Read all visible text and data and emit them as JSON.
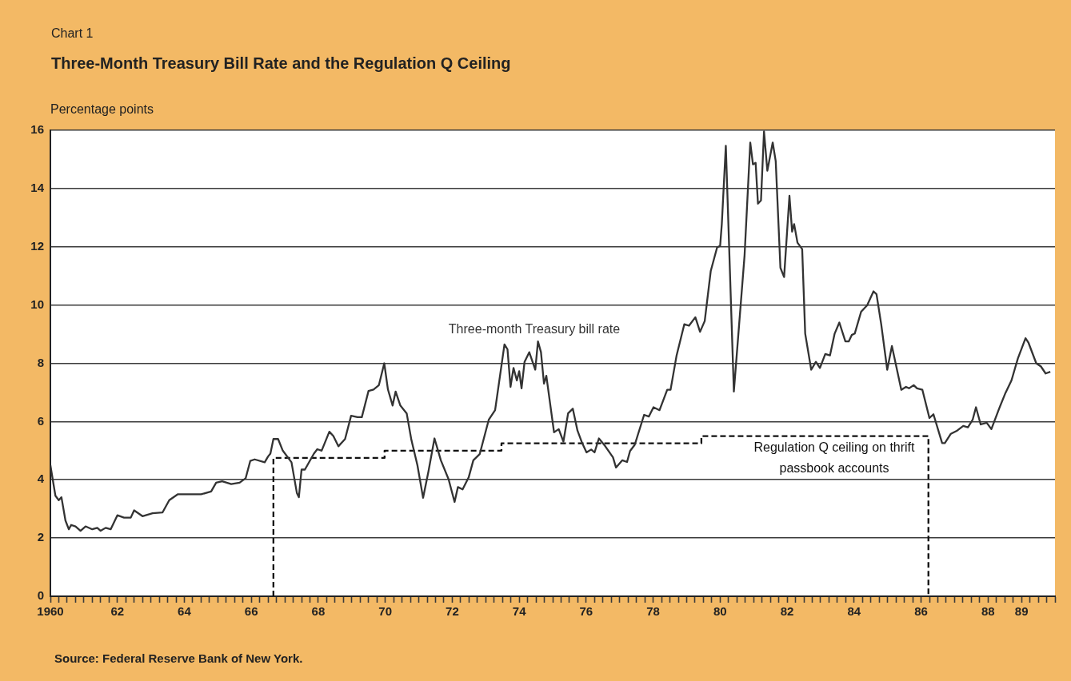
{
  "chart_data": {
    "type": "line",
    "title": "Three-Month Treasury Bill Rate and the Regulation Q Ceiling",
    "ylabel": "Percentage points",
    "annotations": [
      "Chart 1",
      "Source:  Federal Reserve Bank of New York."
    ],
    "xlim": [
      1960,
      1990
    ],
    "ylim": [
      0,
      16
    ],
    "yticks": [
      0,
      2,
      4,
      6,
      8,
      10,
      12,
      14,
      16
    ],
    "xticks": [
      {
        "value": 1960,
        "label": "1960"
      },
      {
        "value": 1960.25,
        "label": null
      },
      {
        "value": 1960.5,
        "label": null
      },
      {
        "value": 1960.75,
        "label": null
      },
      {
        "value": 1961,
        "label": null
      },
      {
        "value": 1961.25,
        "label": null
      },
      {
        "value": 1961.5,
        "label": null
      },
      {
        "value": 1961.75,
        "label": null
      },
      {
        "value": 1962,
        "label": "62"
      },
      {
        "value": 1962.25,
        "label": null
      },
      {
        "value": 1962.5,
        "label": null
      },
      {
        "value": 1962.75,
        "label": null
      },
      {
        "value": 1963,
        "label": null
      },
      {
        "value": 1963.25,
        "label": null
      },
      {
        "value": 1963.5,
        "label": null
      },
      {
        "value": 1963.75,
        "label": null
      },
      {
        "value": 1964,
        "label": "64"
      },
      {
        "value": 1964.25,
        "label": null
      },
      {
        "value": 1964.5,
        "label": null
      },
      {
        "value": 1964.75,
        "label": null
      },
      {
        "value": 1965,
        "label": null
      },
      {
        "value": 1965.25,
        "label": null
      },
      {
        "value": 1965.5,
        "label": null
      },
      {
        "value": 1965.75,
        "label": null
      },
      {
        "value": 1966,
        "label": "66"
      },
      {
        "value": 1966.25,
        "label": null
      },
      {
        "value": 1966.5,
        "label": null
      },
      {
        "value": 1966.75,
        "label": null
      },
      {
        "value": 1967,
        "label": null
      },
      {
        "value": 1967.25,
        "label": null
      },
      {
        "value": 1967.5,
        "label": null
      },
      {
        "value": 1967.75,
        "label": null
      },
      {
        "value": 1968,
        "label": "68"
      },
      {
        "value": 1968.25,
        "label": null
      },
      {
        "value": 1968.5,
        "label": null
      },
      {
        "value": 1968.75,
        "label": null
      },
      {
        "value": 1969,
        "label": null
      },
      {
        "value": 1969.25,
        "label": null
      },
      {
        "value": 1969.5,
        "label": null
      },
      {
        "value": 1969.75,
        "label": null
      },
      {
        "value": 1970,
        "label": "70"
      },
      {
        "value": 1970.25,
        "label": null
      },
      {
        "value": 1970.5,
        "label": null
      },
      {
        "value": 1970.75,
        "label": null
      },
      {
        "value": 1971,
        "label": null
      },
      {
        "value": 1971.25,
        "label": null
      },
      {
        "value": 1971.5,
        "label": null
      },
      {
        "value": 1971.75,
        "label": null
      },
      {
        "value": 1972,
        "label": "72"
      },
      {
        "value": 1972.25,
        "label": null
      },
      {
        "value": 1972.5,
        "label": null
      },
      {
        "value": 1972.75,
        "label": null
      },
      {
        "value": 1973,
        "label": null
      },
      {
        "value": 1973.25,
        "label": null
      },
      {
        "value": 1973.5,
        "label": null
      },
      {
        "value": 1973.75,
        "label": null
      },
      {
        "value": 1974,
        "label": "74"
      },
      {
        "value": 1974.25,
        "label": null
      },
      {
        "value": 1974.5,
        "label": null
      },
      {
        "value": 1974.75,
        "label": null
      },
      {
        "value": 1975,
        "label": null
      },
      {
        "value": 1975.25,
        "label": null
      },
      {
        "value": 1975.5,
        "label": null
      },
      {
        "value": 1975.75,
        "label": null
      },
      {
        "value": 1976,
        "label": "76"
      },
      {
        "value": 1976.25,
        "label": null
      },
      {
        "value": 1976.5,
        "label": null
      },
      {
        "value": 1976.75,
        "label": null
      },
      {
        "value": 1977,
        "label": null
      },
      {
        "value": 1977.25,
        "label": null
      },
      {
        "value": 1977.5,
        "label": null
      },
      {
        "value": 1977.75,
        "label": null
      },
      {
        "value": 1978,
        "label": "78"
      },
      {
        "value": 1978.25,
        "label": null
      },
      {
        "value": 1978.5,
        "label": null
      },
      {
        "value": 1978.75,
        "label": null
      },
      {
        "value": 1979,
        "label": null
      },
      {
        "value": 1979.25,
        "label": null
      },
      {
        "value": 1979.5,
        "label": null
      },
      {
        "value": 1979.75,
        "label": null
      },
      {
        "value": 1980,
        "label": "80"
      },
      {
        "value": 1980.25,
        "label": null
      },
      {
        "value": 1980.5,
        "label": null
      },
      {
        "value": 1980.75,
        "label": null
      },
      {
        "value": 1981,
        "label": null
      },
      {
        "value": 1981.25,
        "label": null
      },
      {
        "value": 1981.5,
        "label": null
      },
      {
        "value": 1981.75,
        "label": null
      },
      {
        "value": 1982,
        "label": "82"
      },
      {
        "value": 1982.25,
        "label": null
      },
      {
        "value": 1982.5,
        "label": null
      },
      {
        "value": 1982.75,
        "label": null
      },
      {
        "value": 1983,
        "label": null
      },
      {
        "value": 1983.25,
        "label": null
      },
      {
        "value": 1983.5,
        "label": null
      },
      {
        "value": 1983.75,
        "label": null
      },
      {
        "value": 1984,
        "label": "84"
      },
      {
        "value": 1984.25,
        "label": null
      },
      {
        "value": 1984.5,
        "label": null
      },
      {
        "value": 1984.75,
        "label": null
      },
      {
        "value": 1985,
        "label": null
      },
      {
        "value": 1985.25,
        "label": null
      },
      {
        "value": 1985.5,
        "label": null
      },
      {
        "value": 1985.75,
        "label": null
      },
      {
        "value": 1986,
        "label": "86"
      },
      {
        "value": 1986.25,
        "label": null
      },
      {
        "value": 1986.5,
        "label": null
      },
      {
        "value": 1986.75,
        "label": null
      },
      {
        "value": 1987,
        "label": null
      },
      {
        "value": 1987.25,
        "label": null
      },
      {
        "value": 1987.5,
        "label": null
      },
      {
        "value": 1987.75,
        "label": null
      },
      {
        "value": 1988,
        "label": "88"
      },
      {
        "value": 1988.25,
        "label": null
      },
      {
        "value": 1988.5,
        "label": null
      },
      {
        "value": 1988.75,
        "label": null
      },
      {
        "value": 1989,
        "label": "89"
      },
      {
        "value": 1989.25,
        "label": null
      },
      {
        "value": 1989.5,
        "label": null
      },
      {
        "value": 1989.75,
        "label": null
      },
      {
        "value": 1990,
        "label": null
      }
    ],
    "grid": "y",
    "marker": "none",
    "series": [
      {
        "name": "Three-month Treasury bill rate",
        "color": "#333333",
        "line_style": "solid",
        "x": [
          1960.0,
          1960.15,
          1960.25,
          1960.33,
          1960.45,
          1960.55,
          1960.62,
          1960.75,
          1960.9,
          1961.05,
          1961.25,
          1961.4,
          1961.5,
          1961.65,
          1961.8,
          1962.0,
          1962.2,
          1962.4,
          1962.5,
          1962.75,
          1963.05,
          1963.35,
          1963.55,
          1963.8,
          1964.15,
          1964.5,
          1964.8,
          1964.95,
          1965.13,
          1965.4,
          1965.65,
          1965.83,
          1965.97,
          1966.1,
          1966.4,
          1966.5,
          1966.57,
          1966.66,
          1966.8,
          1966.94,
          1967.2,
          1967.36,
          1967.42,
          1967.5,
          1967.6,
          1967.87,
          1967.97,
          1968.1,
          1968.33,
          1968.45,
          1968.6,
          1968.8,
          1968.98,
          1969.17,
          1969.3,
          1969.5,
          1969.65,
          1969.81,
          1969.97,
          1970.08,
          1970.22,
          1970.31,
          1970.45,
          1970.64,
          1970.78,
          1970.96,
          1971.13,
          1971.29,
          1971.47,
          1971.66,
          1971.89,
          1972.07,
          1972.17,
          1972.31,
          1972.49,
          1972.63,
          1972.82,
          1973.09,
          1973.28,
          1973.56,
          1973.65,
          1973.74,
          1973.83,
          1973.93,
          1974.0,
          1974.07,
          1974.16,
          1974.3,
          1974.48,
          1974.56,
          1974.65,
          1974.74,
          1974.81,
          1975.04,
          1975.18,
          1975.32,
          1975.46,
          1975.6,
          1975.74,
          1975.88,
          1976.01,
          1976.15,
          1976.25,
          1976.38,
          1976.57,
          1976.8,
          1976.89,
          1977.08,
          1977.22,
          1977.31,
          1977.45,
          1977.73,
          1977.87,
          1978.01,
          1978.19,
          1978.42,
          1978.52,
          1978.7,
          1978.93,
          1979.07,
          1979.26,
          1979.4,
          1979.54,
          1979.72,
          1979.91,
          1980.0,
          1980.05,
          1980.17,
          1980.41,
          1980.73,
          1980.9,
          1980.98,
          1981.06,
          1981.13,
          1981.22,
          1981.31,
          1981.41,
          1981.57,
          1981.66,
          1981.8,
          1981.91,
          1982.07,
          1982.15,
          1982.21,
          1982.31,
          1982.45,
          1982.54,
          1982.72,
          1982.86,
          1982.98,
          1983.14,
          1983.28,
          1983.42,
          1983.56,
          1983.74,
          1983.84,
          1983.93,
          1984.02,
          1984.21,
          1984.39,
          1984.58,
          1984.67,
          1984.81,
          1984.99,
          1985.13,
          1985.41,
          1985.55,
          1985.64,
          1985.78,
          1985.88,
          1986.04,
          1986.25,
          1986.37,
          1986.63,
          1986.71,
          1986.89,
          1987.08,
          1987.26,
          1987.4,
          1987.54,
          1987.64,
          1987.78,
          1987.96,
          1988.1,
          1988.33,
          1988.52,
          1988.7,
          1988.89,
          1989.12,
          1989.21,
          1989.44,
          1989.58,
          1989.72,
          1989.86
        ],
        "values": [
          4.5,
          3.45,
          3.3,
          3.4,
          2.6,
          2.3,
          2.45,
          2.4,
          2.25,
          2.4,
          2.3,
          2.35,
          2.25,
          2.35,
          2.3,
          2.78,
          2.7,
          2.7,
          2.95,
          2.75,
          2.85,
          2.88,
          3.3,
          3.5,
          3.5,
          3.5,
          3.6,
          3.9,
          3.95,
          3.85,
          3.9,
          4.05,
          4.65,
          4.7,
          4.6,
          4.8,
          4.9,
          5.4,
          5.4,
          5.0,
          4.6,
          3.55,
          3.4,
          4.35,
          4.35,
          4.9,
          5.05,
          5.0,
          5.65,
          5.5,
          5.15,
          5.4,
          6.2,
          6.15,
          6.15,
          7.05,
          7.1,
          7.25,
          8.0,
          7.1,
          6.55,
          7.03,
          6.55,
          6.28,
          5.37,
          4.5,
          3.38,
          4.29,
          5.42,
          4.67,
          4.02,
          3.24,
          3.75,
          3.67,
          4.08,
          4.67,
          4.88,
          6.06,
          6.39,
          8.65,
          8.48,
          7.19,
          7.84,
          7.41,
          7.73,
          7.14,
          8.05,
          8.38,
          7.78,
          8.75,
          8.38,
          7.3,
          7.57,
          5.63,
          5.74,
          5.31,
          6.28,
          6.44,
          5.69,
          5.26,
          4.94,
          5.04,
          4.94,
          5.42,
          5.15,
          4.77,
          4.42,
          4.67,
          4.61,
          4.99,
          5.2,
          6.23,
          6.17,
          6.49,
          6.39,
          7.09,
          7.09,
          8.27,
          9.34,
          9.29,
          9.58,
          9.08,
          9.45,
          11.17,
          11.98,
          12.03,
          12.78,
          15.47,
          7.03,
          11.71,
          15.58,
          14.83,
          14.88,
          13.48,
          13.59,
          15.96,
          14.61,
          15.58,
          14.94,
          11.28,
          10.96,
          13.75,
          12.52,
          12.78,
          12.14,
          11.92,
          9.02,
          7.78,
          8.05,
          7.84,
          8.32,
          8.27,
          9.02,
          9.4,
          8.75,
          8.75,
          8.97,
          9.02,
          9.77,
          9.99,
          10.47,
          10.37,
          9.34,
          7.78,
          8.59,
          7.09,
          7.19,
          7.14,
          7.25,
          7.14,
          7.09,
          6.12,
          6.25,
          5.26,
          5.26,
          5.58,
          5.69,
          5.85,
          5.8,
          6.06,
          6.49,
          5.9,
          5.96,
          5.74,
          6.44,
          6.98,
          7.41,
          8.16,
          8.86,
          8.7,
          8.0,
          7.89,
          7.65,
          7.71
        ]
      },
      {
        "name": "Regulation Q ceiling on thrift passbook accounts",
        "color": "#111111",
        "line_style": "dashed",
        "x": [
          1966.66,
          1966.66,
          1969.98,
          1969.98,
          1973.47,
          1973.47,
          1979.44,
          1979.44,
          1986.22,
          1986.22
        ],
        "values": [
          0,
          4.75,
          4.75,
          5,
          5,
          5.25,
          5.25,
          5.5,
          5.5,
          0
        ]
      }
    ]
  }
}
